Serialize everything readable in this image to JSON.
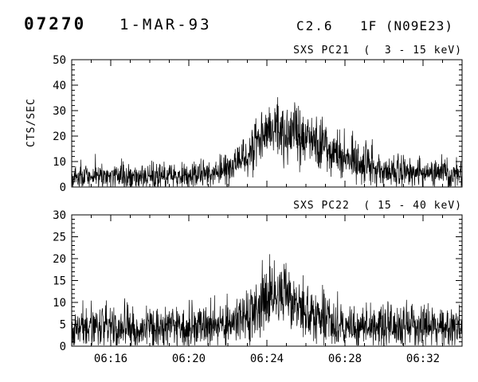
{
  "header": {
    "event_number": "07270",
    "date": "1-MAR-93",
    "goes_class": "C2.6",
    "flare_info": "1F (N09E23)"
  },
  "chart_data": [
    {
      "type": "line",
      "title": "SXS PC21  (  3 - 15 keV)",
      "ylabel": "CTS/SEC",
      "ylim": [
        0,
        50
      ],
      "yticks": [
        0,
        10,
        20,
        30,
        40,
        50
      ],
      "y_minor_step": 2,
      "x_start_label": "06:14",
      "x_end_label": "06:34",
      "x_total_minutes": 20,
      "xticks": [
        {
          "label": "06:16",
          "min": 2
        },
        {
          "label": "06:20",
          "min": 6
        },
        {
          "label": "06:24",
          "min": 10
        },
        {
          "label": "06:28",
          "min": 14
        },
        {
          "label": "06:32",
          "min": 18
        }
      ],
      "x_minor_step_min": 1,
      "grid": false,
      "line_color": "#000000",
      "envelope": {
        "t": [
          0,
          4,
          6,
          7,
          8,
          8.5,
          9,
          9.5,
          10,
          10.4,
          11,
          12,
          13,
          14,
          15,
          16,
          17,
          18,
          20
        ],
        "mean": [
          4,
          4.2,
          4.5,
          5,
          7,
          9,
          13,
          18,
          21,
          23,
          21,
          19,
          16,
          12,
          9,
          7,
          6,
          6,
          5
        ]
      },
      "peak_counts": 37,
      "baseline_counts": 4,
      "noise_scale": 1.25,
      "points": 1400,
      "seed": 42
    },
    {
      "type": "line",
      "title": "SXS PC22  ( 15 - 40 keV)",
      "ylabel": "",
      "ylim": [
        0,
        30
      ],
      "yticks": [
        0,
        5,
        10,
        15,
        20,
        25,
        30
      ],
      "y_minor_step": 1,
      "x_start_label": "06:14",
      "x_end_label": "06:34",
      "x_total_minutes": 20,
      "xticks": [
        {
          "label": "06:16",
          "min": 2
        },
        {
          "label": "06:20",
          "min": 6
        },
        {
          "label": "06:24",
          "min": 10
        },
        {
          "label": "06:28",
          "min": 14
        },
        {
          "label": "06:32",
          "min": 18
        }
      ],
      "x_minor_step_min": 1,
      "grid": false,
      "line_color": "#000000",
      "envelope": {
        "t": [
          0,
          7,
          8,
          9,
          9.5,
          10,
          10.4,
          11,
          12,
          13,
          14,
          15,
          20
        ],
        "mean": [
          4.5,
          4.8,
          5.5,
          7,
          9,
          12,
          13,
          11,
          8,
          6,
          5,
          4.8,
          4.5
        ]
      },
      "peak_counts": 22,
      "baseline_counts": 4.5,
      "noise_scale": 1.1,
      "points": 1400,
      "seed": 1337
    }
  ]
}
